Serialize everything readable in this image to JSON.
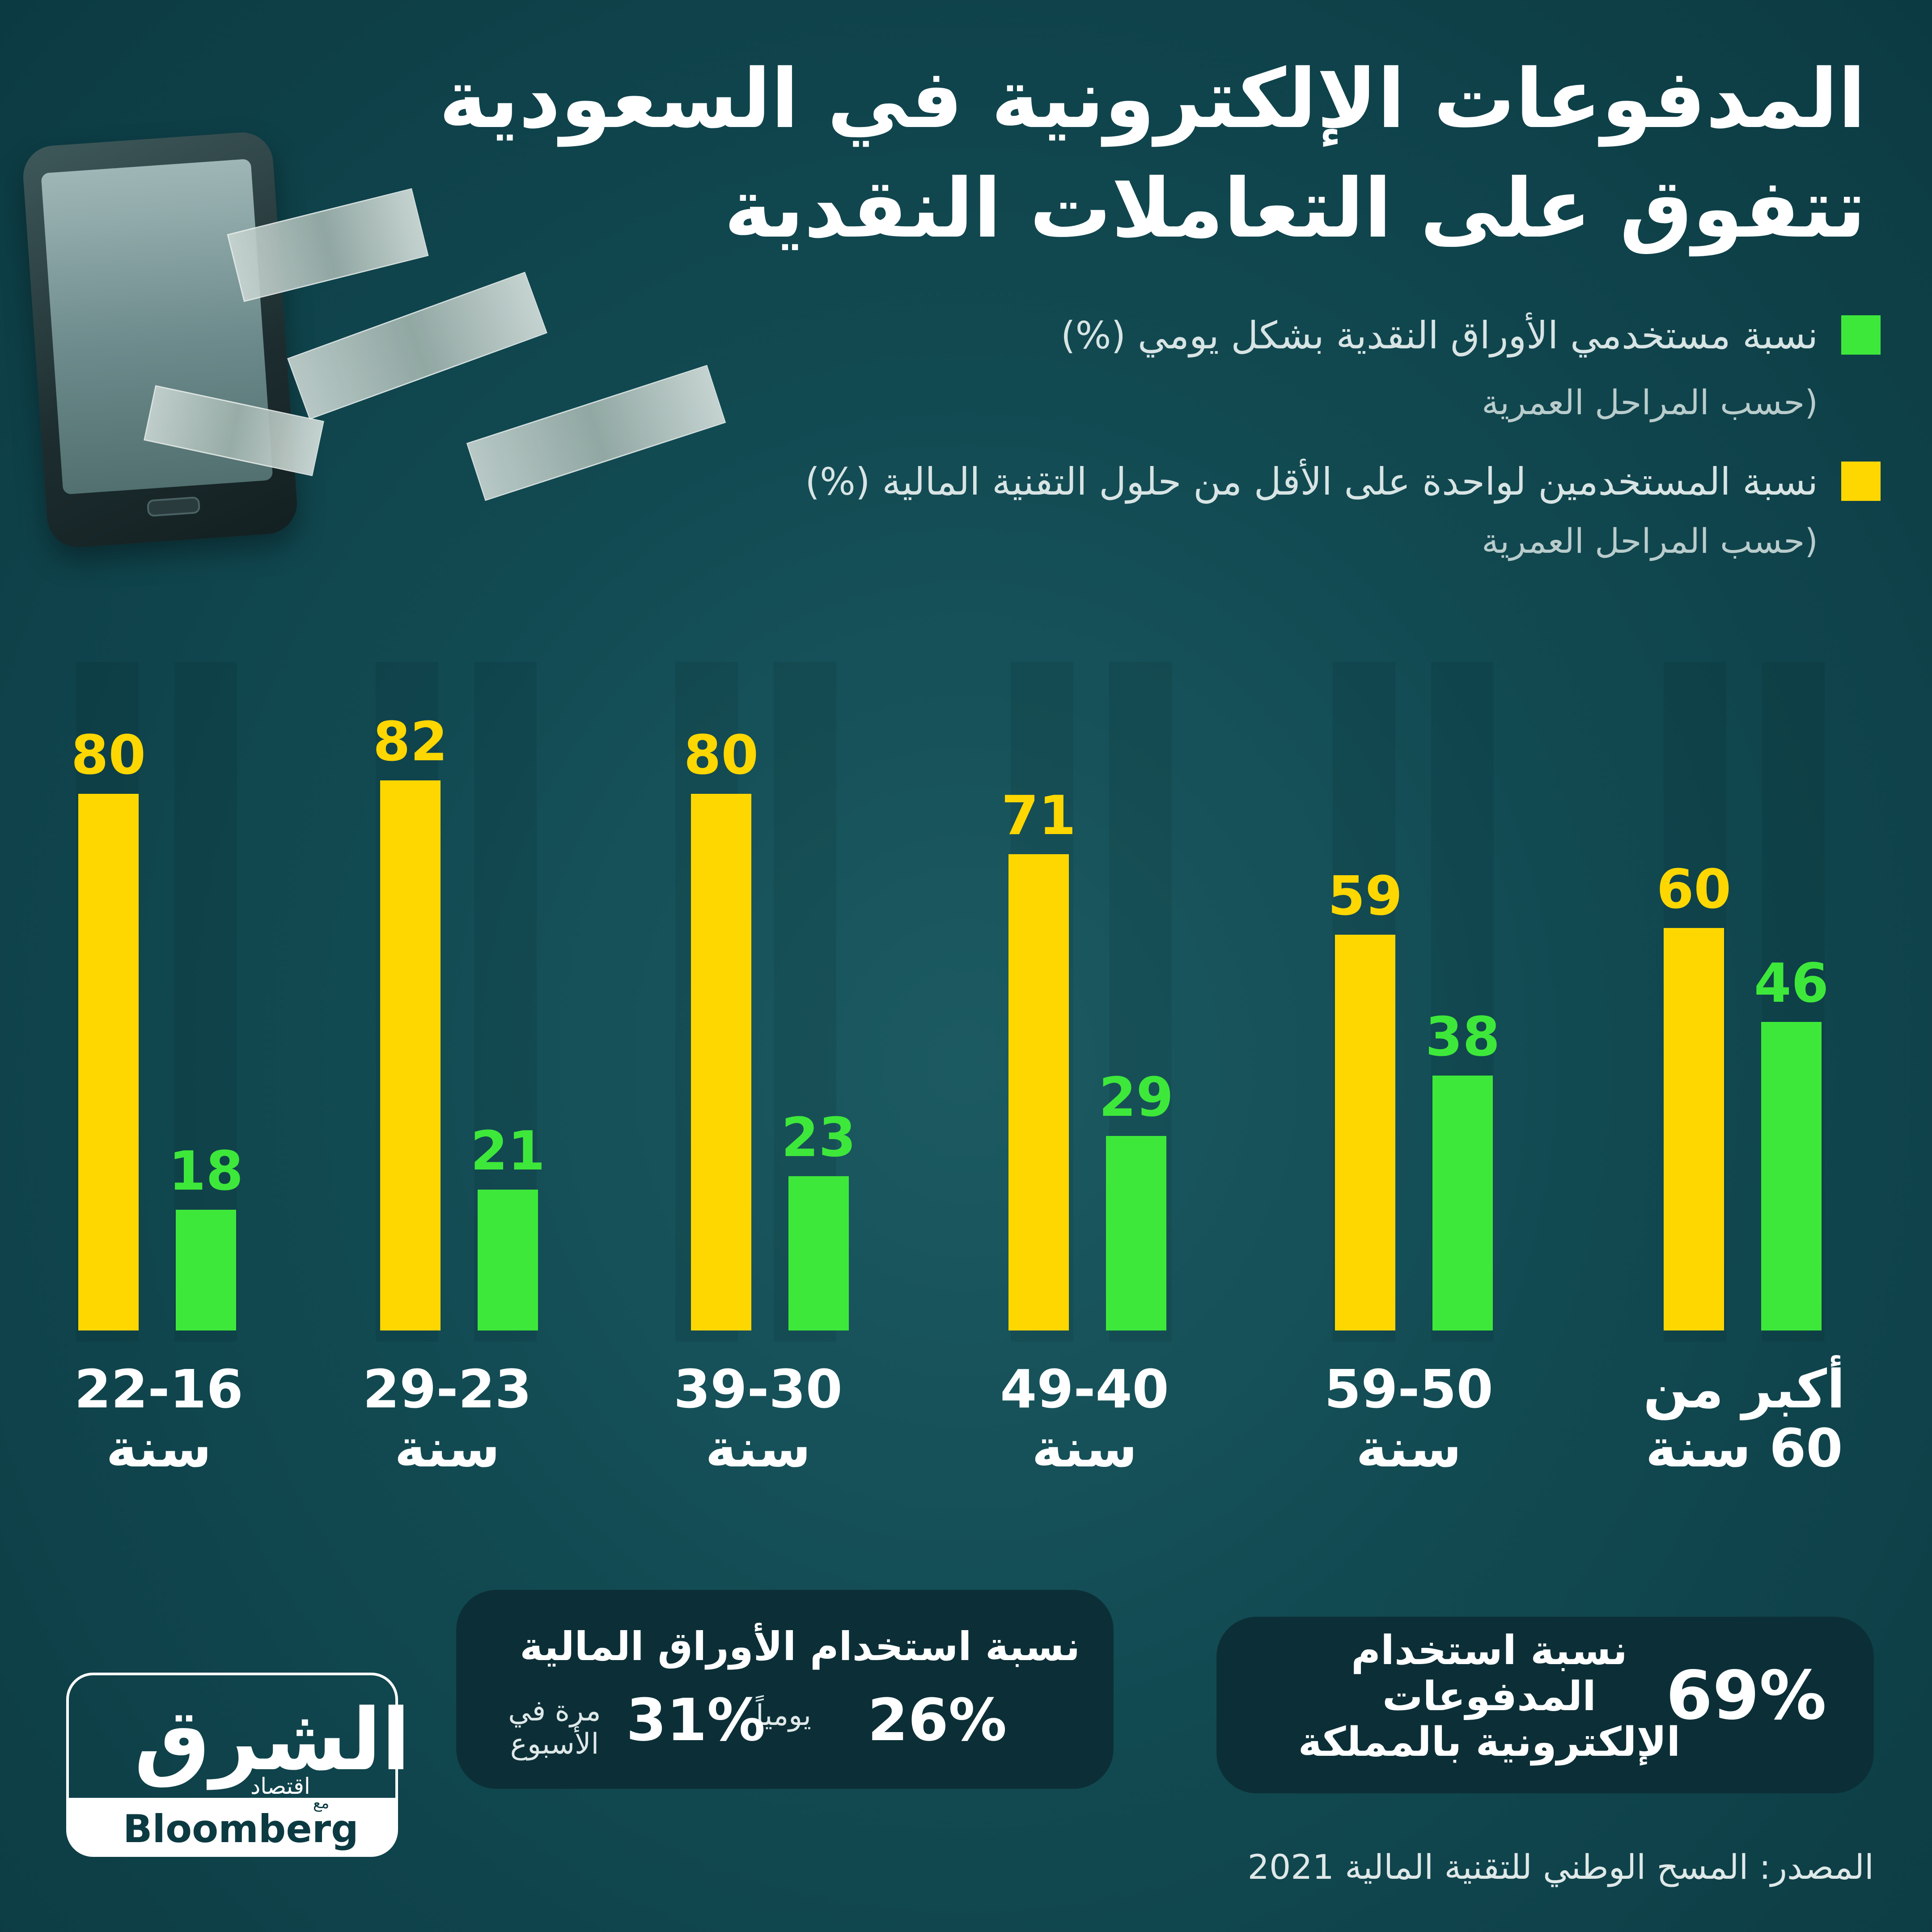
{
  "title": {
    "line1": "المدفوعات الإلكترونية في السعودية",
    "line2": "تتفوق على التعاملات النقدية"
  },
  "legend": [
    {
      "label": "نسبة مستخدمي الأوراق النقدية بشكل يومي (%)",
      "sublabel": "(حسب المراحل العمرية",
      "color": "#3ee83a"
    },
    {
      "label": "نسبة المستخدمين لواحدة على الأقل من حلول التقنية المالية (%)",
      "sublabel": "(حسب المراحل العمرية",
      "color": "#ffd700"
    }
  ],
  "chart_data": {
    "type": "bar",
    "categories": [
      "22-16 سنة",
      "29-23 سنة",
      "39-30 سنة",
      "49-40 سنة",
      "59-50 سنة",
      "أكبر من 60 سنة"
    ],
    "category_lines": [
      [
        "22-16",
        "سنة"
      ],
      [
        "29-23",
        "سنة"
      ],
      [
        "39-30",
        "سنة"
      ],
      [
        "49-40",
        "سنة"
      ],
      [
        "59-50",
        "سنة"
      ],
      [
        "أكبر من",
        "60 سنة"
      ]
    ],
    "series": [
      {
        "name": "نسبة المستخدمين لواحدة على الأقل من حلول التقنية المالية (%)",
        "color": "#ffd700",
        "values": [
          80,
          82,
          80,
          71,
          59,
          60
        ]
      },
      {
        "name": "نسبة مستخدمي الأوراق النقدية بشكل يومي (%)",
        "color": "#3ee83a",
        "values": [
          18,
          21,
          23,
          29,
          38,
          46
        ]
      }
    ],
    "ylim": [
      0,
      100
    ],
    "grid": false,
    "legend_position": "top-right"
  },
  "stats": {
    "cash_heading": "نسبة استخدام الأوراق المالية",
    "daily_value": "26%",
    "daily_label": "يومياً",
    "weekly_value": "31%",
    "weekly_label": "مرة في\nالأسبوع",
    "epay_value": "69%",
    "epay_label": "نسبة استخدام\nالمدفوعات\nالإلكترونية بالمملكة"
  },
  "logo": {
    "arabic": "الشرق",
    "arabic_sub": "اقتصاد",
    "with": "مع",
    "english": "Bloomberg"
  },
  "source": "المصدر: المسح الوطني للتقنية المالية 2021"
}
